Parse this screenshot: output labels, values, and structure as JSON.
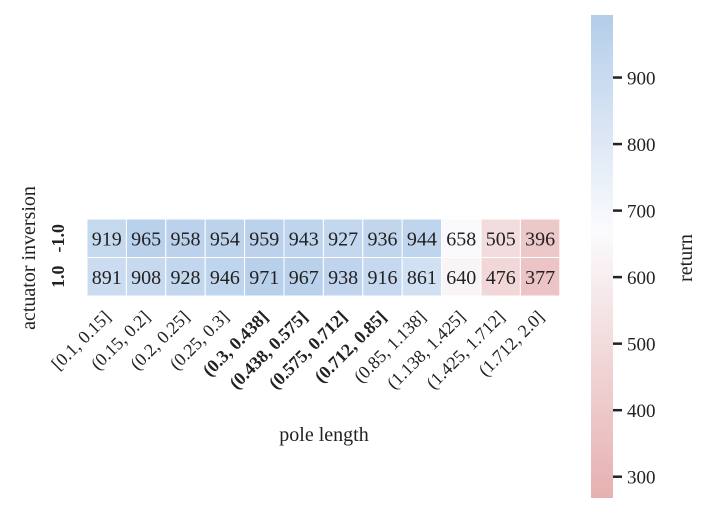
{
  "chart_data": {
    "type": "heatmap",
    "title": "",
    "xlabel": "pole length",
    "ylabel": "actuator inversion",
    "x_categories": [
      {
        "label": "[0.1, 0.15]",
        "bold": false
      },
      {
        "label": "(0.15, 0.2]",
        "bold": false
      },
      {
        "label": "(0.2, 0.25]",
        "bold": false
      },
      {
        "label": "(0.25, 0.3]",
        "bold": false
      },
      {
        "label": "(0.3, 0.438]",
        "bold": true
      },
      {
        "label": "(0.438, 0.575]",
        "bold": true
      },
      {
        "label": "(0.575, 0.712]",
        "bold": true
      },
      {
        "label": "(0.712, 0.85]",
        "bold": true
      },
      {
        "label": "(0.85, 1.138]",
        "bold": false
      },
      {
        "label": "(1.138, 1.425]",
        "bold": false
      },
      {
        "label": "(1.425, 1.712]",
        "bold": false
      },
      {
        "label": "(1.712, 2.0]",
        "bold": false
      }
    ],
    "y_categories": [
      {
        "label": "-1.0",
        "bold": true
      },
      {
        "label": "1.0",
        "bold": true
      }
    ],
    "values": [
      [
        919,
        965,
        958,
        954,
        959,
        943,
        927,
        936,
        944,
        658,
        505,
        396
      ],
      [
        891,
        908,
        928,
        946,
        971,
        967,
        938,
        916,
        861,
        640,
        476,
        377
      ]
    ],
    "colorbar": {
      "label": "return",
      "min": 268,
      "max": 994,
      "center": 670,
      "ticks": [
        "300",
        "400",
        "500",
        "600",
        "700",
        "800",
        "900"
      ],
      "low_color": "#e6b0b0",
      "mid_color": "#fbfbfd",
      "high_color": "#b4cdea"
    },
    "grid": false
  }
}
